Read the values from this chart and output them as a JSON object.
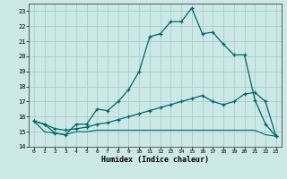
{
  "xlabel": "Humidex (Indice chaleur)",
  "bg_color": "#cce9e8",
  "grid_color": "#aacccc",
  "line_color": "#006666",
  "xlim": [
    -0.5,
    23.5
  ],
  "ylim": [
    14,
    23.5
  ],
  "yticks": [
    14,
    15,
    16,
    17,
    18,
    19,
    20,
    21,
    22,
    23
  ],
  "xticks": [
    0,
    1,
    2,
    3,
    4,
    5,
    6,
    7,
    8,
    9,
    10,
    11,
    12,
    13,
    14,
    15,
    16,
    17,
    18,
    19,
    20,
    21,
    22,
    23
  ],
  "line1_x": [
    0,
    1,
    2,
    3,
    4,
    5,
    6,
    7,
    8,
    9,
    10,
    11,
    12,
    13,
    14,
    15,
    16,
    17,
    18,
    19,
    20,
    21,
    22,
    23
  ],
  "line1_y": [
    15.7,
    15.5,
    14.9,
    14.8,
    15.5,
    15.5,
    16.5,
    16.4,
    17.0,
    17.8,
    19.0,
    21.3,
    21.5,
    22.3,
    22.3,
    23.2,
    21.5,
    21.6,
    20.8,
    20.1,
    20.1,
    17.1,
    15.5,
    14.7
  ],
  "line2_x": [
    0,
    1,
    2,
    3,
    4,
    5,
    6,
    7,
    8,
    9,
    10,
    11,
    12,
    13,
    14,
    15,
    16,
    17,
    18,
    19,
    20,
    21,
    22,
    23
  ],
  "line2_y": [
    15.7,
    15.5,
    15.2,
    15.1,
    15.2,
    15.3,
    15.5,
    15.6,
    15.8,
    16.0,
    16.2,
    16.4,
    16.6,
    16.8,
    17.0,
    17.2,
    17.4,
    17.0,
    16.8,
    17.0,
    17.5,
    17.6,
    17.0,
    14.7
  ],
  "line3_x": [
    0,
    1,
    2,
    3,
    4,
    5,
    6,
    7,
    8,
    9,
    10,
    11,
    12,
    13,
    14,
    15,
    16,
    17,
    18,
    19,
    20,
    21,
    22,
    23
  ],
  "line3_y": [
    15.7,
    15.0,
    14.9,
    14.8,
    15.0,
    15.0,
    15.1,
    15.1,
    15.1,
    15.1,
    15.1,
    15.1,
    15.1,
    15.1,
    15.1,
    15.1,
    15.1,
    15.1,
    15.1,
    15.1,
    15.1,
    15.1,
    14.8,
    14.7
  ]
}
